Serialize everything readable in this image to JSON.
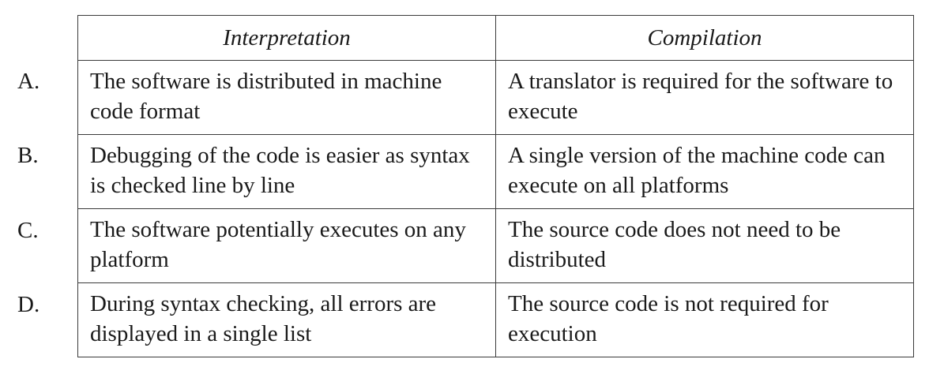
{
  "table": {
    "headers": [
      "Interpretation",
      "Compilation"
    ],
    "rows": [
      {
        "label": "A.",
        "interpretation": "The software is distributed in machine code format",
        "compilation": "A translator is required for the software to execute"
      },
      {
        "label": "B.",
        "interpretation": "Debugging of the code is easier as syntax is checked line by line",
        "compilation": "A single version of the machine code can execute on all platforms"
      },
      {
        "label": "C.",
        "interpretation": "The software potentially executes on any platform",
        "compilation": "The source code does not need to be distributed"
      },
      {
        "label": "D.",
        "interpretation": "During syntax checking, all errors are displayed in a single list",
        "compilation": "The source code is not required for execution"
      }
    ]
  }
}
